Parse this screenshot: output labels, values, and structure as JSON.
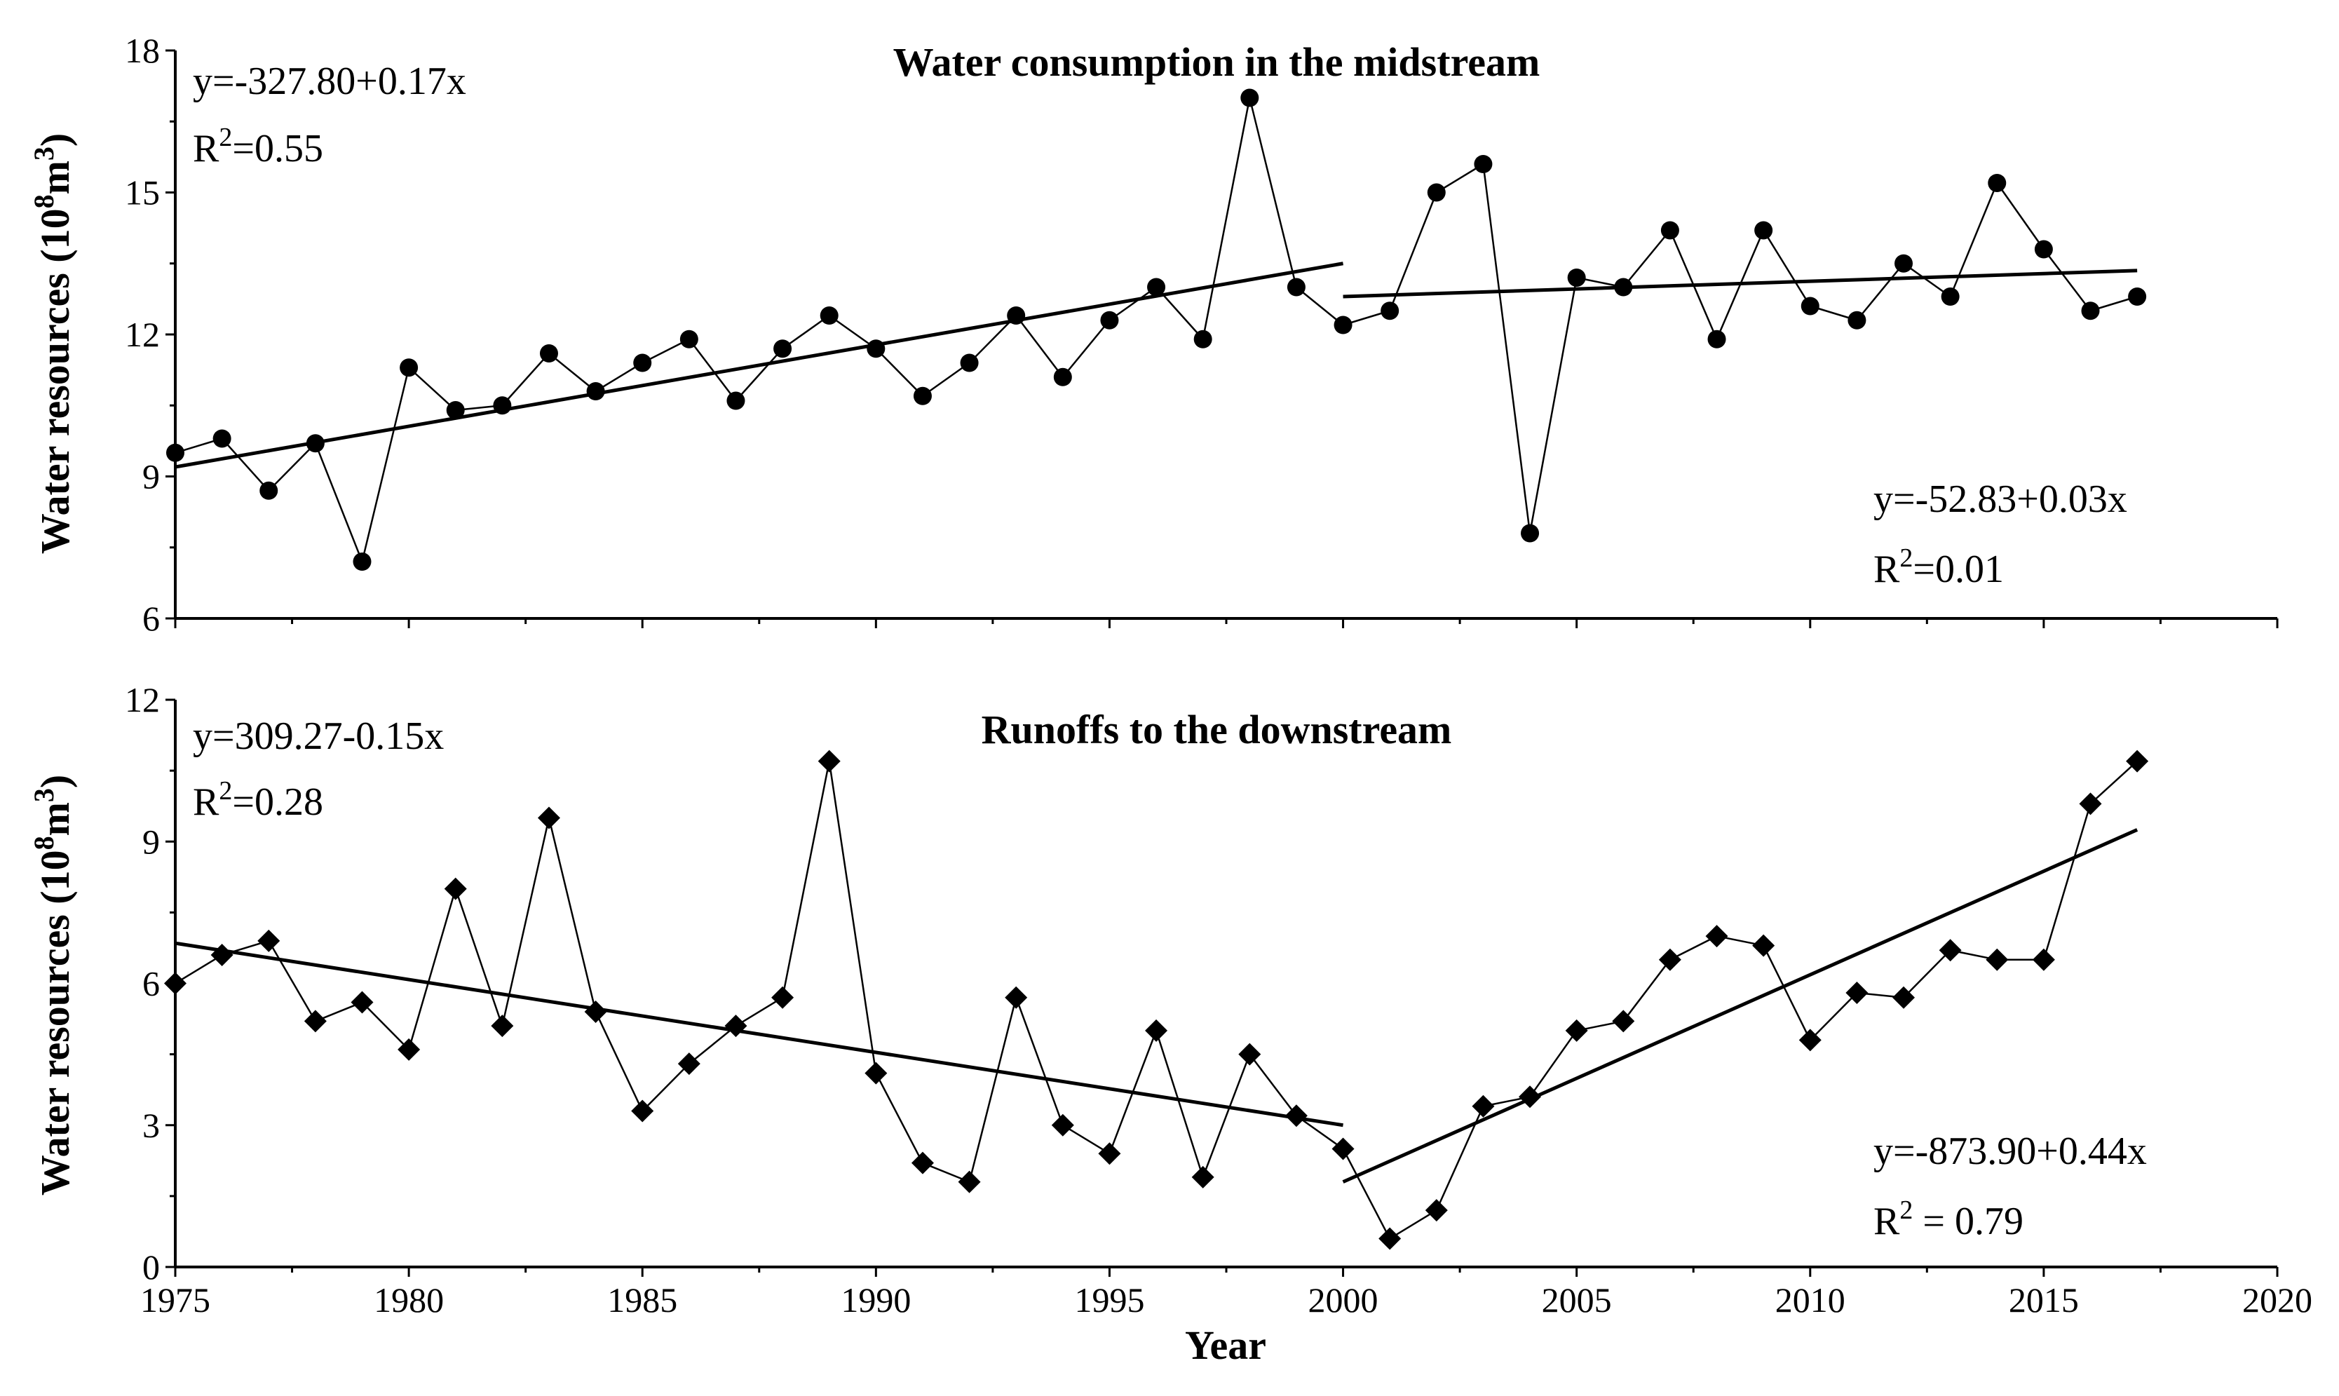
{
  "chart_data": [
    {
      "type": "line",
      "title": "Water consumption in the midstream",
      "ylabel": "Water resources (10",
      "ylabel_exp": "8",
      "ylabel_unit": "m",
      "ylabel_unit_exp": "3",
      "ylabel_close": ")",
      "xlim": [
        1975,
        2020
      ],
      "ylim": [
        6,
        18
      ],
      "yticks": [
        6,
        9,
        12,
        15,
        18
      ],
      "marker": "circle",
      "series": [
        {
          "name": "Water consumption in the midstream",
          "x": [
            1975,
            1976,
            1977,
            1978,
            1979,
            1980,
            1981,
            1982,
            1983,
            1984,
            1985,
            1986,
            1987,
            1988,
            1989,
            1990,
            1991,
            1992,
            1993,
            1994,
            1995,
            1996,
            1997,
            1998,
            1999,
            2000,
            2001,
            2002,
            2003,
            2004,
            2005,
            2006,
            2007,
            2008,
            2009,
            2010,
            2011,
            2012,
            2013,
            2014,
            2015,
            2016,
            2017
          ],
          "values": [
            9.5,
            9.8,
            8.7,
            9.7,
            7.2,
            11.3,
            10.4,
            10.5,
            11.6,
            10.8,
            11.4,
            11.9,
            10.6,
            11.7,
            12.4,
            11.7,
            10.7,
            11.4,
            12.4,
            11.1,
            12.3,
            13.0,
            11.9,
            17.0,
            13.0,
            12.2,
            12.5,
            15.0,
            15.6,
            7.8,
            13.2,
            13.0,
            14.2,
            11.9,
            14.2,
            12.6,
            12.3,
            13.5,
            12.8,
            15.2,
            13.8,
            12.5,
            12.8
          ]
        }
      ],
      "trendlines": [
        {
          "x": [
            1975,
            2000
          ],
          "y": [
            9.2,
            13.5
          ]
        },
        {
          "x": [
            2000,
            2017
          ],
          "y": [
            12.8,
            13.35
          ]
        }
      ],
      "annotations": [
        {
          "eq": "y=-327.80+0.17x",
          "r2_label": "R",
          "r2_exp": "2",
          "r2_value": "=0.55"
        },
        {
          "eq": "y=-52.83+0.03x",
          "r2_label": "R",
          "r2_exp": "2",
          "r2_value": "=0.01"
        }
      ]
    },
    {
      "type": "line",
      "title": "Runoffs to the downstream",
      "ylabel": "Water resources (10",
      "ylabel_exp": "8",
      "ylabel_unit": "m",
      "ylabel_unit_exp": "3",
      "ylabel_close": ")",
      "xlabel": "Year",
      "xlim": [
        1975,
        2020
      ],
      "ylim": [
        0,
        12
      ],
      "xticks": [
        1975,
        1980,
        1985,
        1990,
        1995,
        2000,
        2005,
        2010,
        2015,
        2020
      ],
      "yticks": [
        0,
        3,
        6,
        9,
        12
      ],
      "marker": "diamond",
      "series": [
        {
          "name": "Runoffs to the downstream",
          "x": [
            1975,
            1976,
            1977,
            1978,
            1979,
            1980,
            1981,
            1982,
            1983,
            1984,
            1985,
            1986,
            1987,
            1988,
            1989,
            1990,
            1991,
            1992,
            1993,
            1994,
            1995,
            1996,
            1997,
            1998,
            1999,
            2000,
            2001,
            2002,
            2003,
            2004,
            2005,
            2006,
            2007,
            2008,
            2009,
            2010,
            2011,
            2012,
            2013,
            2014,
            2015,
            2016,
            2017
          ],
          "values": [
            6.0,
            6.6,
            6.9,
            5.2,
            5.6,
            4.6,
            8.0,
            5.1,
            9.5,
            5.4,
            3.3,
            4.3,
            5.1,
            5.7,
            10.7,
            4.1,
            2.2,
            1.8,
            5.7,
            3.0,
            2.4,
            5.0,
            1.9,
            4.5,
            3.2,
            2.5,
            0.6,
            1.2,
            3.4,
            3.6,
            5.0,
            5.2,
            6.5,
            7.0,
            6.8,
            4.8,
            5.8,
            5.7,
            6.7,
            6.5,
            6.5,
            9.8,
            10.7
          ]
        }
      ],
      "trendlines": [
        {
          "x": [
            1975,
            2000
          ],
          "y": [
            6.85,
            3.0
          ]
        },
        {
          "x": [
            2000,
            2017
          ],
          "y": [
            1.8,
            9.25
          ]
        }
      ],
      "annotations": [
        {
          "eq": "y=309.27-0.15x",
          "r2_label": "R",
          "r2_exp": "2",
          "r2_value": "=0.28"
        },
        {
          "eq": "y=-873.90+0.44x",
          "r2_label": "R",
          "r2_exp": "2",
          "r2_value": " = 0.79"
        }
      ]
    }
  ]
}
